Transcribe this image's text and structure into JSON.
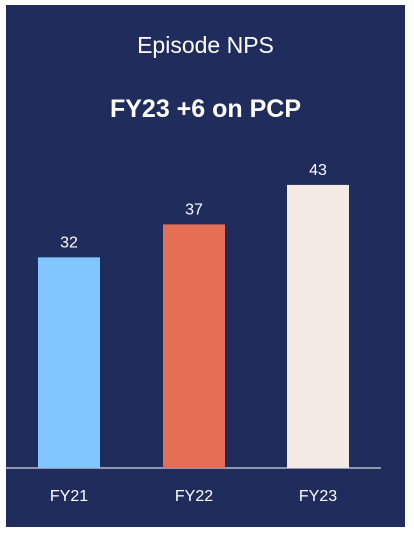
{
  "chart_data": {
    "type": "bar",
    "title": "Episode NPS",
    "subtitle": "FY23 +6 on PCP",
    "categories": [
      "FY21",
      "FY22",
      "FY23"
    ],
    "values": [
      32,
      37,
      43
    ],
    "colors": [
      "#82c6ff",
      "#e66e55",
      "#f3ebe3"
    ],
    "ylim": [
      0,
      60
    ],
    "data_labels": true,
    "grid": false,
    "legend": "none"
  },
  "colors": {
    "background": "#1f2c5c",
    "text": "#ffffff",
    "axis": "#ffffff"
  }
}
